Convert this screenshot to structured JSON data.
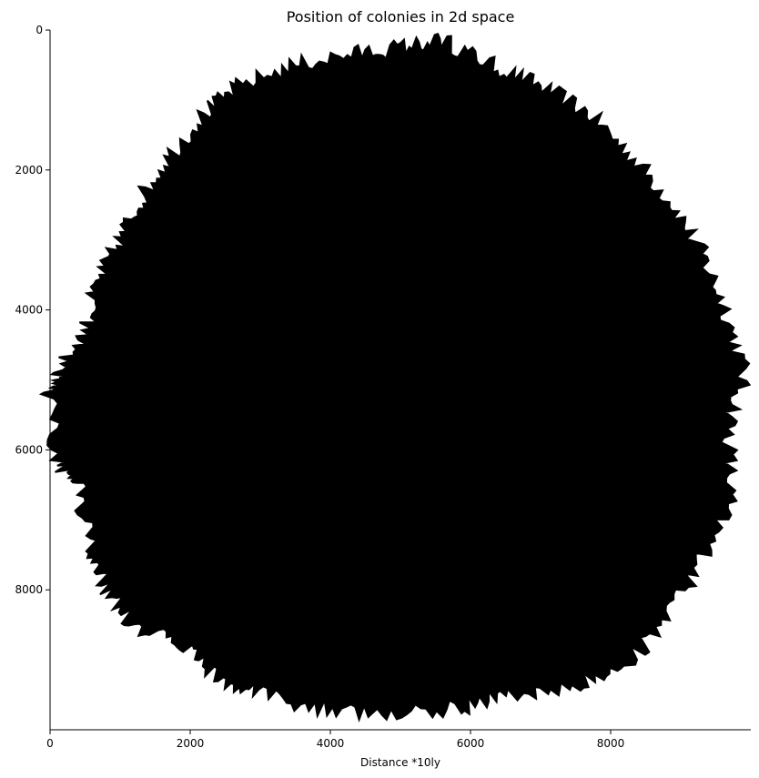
{
  "chart_data": {
    "type": "scatter",
    "title": "Position of colonies in 2d space",
    "xlabel": "Distance *10ly",
    "ylabel": "",
    "xlim": [
      0,
      10000
    ],
    "ylim": [
      10000,
      0
    ],
    "y_axis_inverted": true,
    "x_ticks": [
      0,
      2000,
      4000,
      6000,
      8000
    ],
    "y_ticks": [
      0,
      2000,
      4000,
      6000,
      8000
    ],
    "x_tick_labels": [
      "0",
      "2000",
      "4000",
      "6000",
      "8000"
    ],
    "y_tick_labels": [
      "0",
      "2000",
      "4000",
      "6000",
      "8000"
    ],
    "grid": false,
    "legend": "none",
    "marker_color": "#000000",
    "spines_visible": [
      "left",
      "bottom"
    ],
    "cluster_outline": {
      "description_units": "data",
      "points": [
        [
          5600,
          150
        ],
        [
          6300,
          500
        ],
        [
          7000,
          800
        ],
        [
          7700,
          1200
        ],
        [
          8300,
          1800
        ],
        [
          8900,
          2500
        ],
        [
          9300,
          3200
        ],
        [
          9650,
          4000
        ],
        [
          9900,
          4900
        ],
        [
          9700,
          5700
        ],
        [
          9700,
          6700
        ],
        [
          9300,
          7600
        ],
        [
          8800,
          8400
        ],
        [
          8200,
          9100
        ],
        [
          7400,
          9400
        ],
        [
          6500,
          9500
        ],
        [
          5800,
          9700
        ],
        [
          4800,
          9800
        ],
        [
          3900,
          9700
        ],
        [
          3000,
          9500
        ],
        [
          2400,
          9300
        ],
        [
          1900,
          8800
        ],
        [
          1200,
          8500
        ],
        [
          800,
          8000
        ],
        [
          600,
          7400
        ],
        [
          400,
          6500
        ],
        [
          100,
          6200
        ],
        [
          0,
          5200
        ],
        [
          100,
          4900
        ],
        [
          500,
          4300
        ],
        [
          700,
          3600
        ],
        [
          1000,
          3000
        ],
        [
          1300,
          2400
        ],
        [
          1700,
          1800
        ],
        [
          2200,
          1200
        ],
        [
          2700,
          800
        ],
        [
          3500,
          500
        ],
        [
          4300,
          350
        ],
        [
          5000,
          250
        ]
      ]
    }
  }
}
